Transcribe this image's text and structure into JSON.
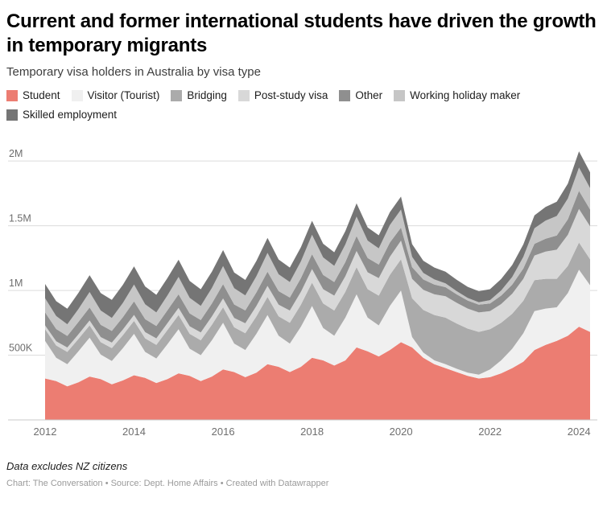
{
  "header": {
    "title": "Current and former international students have driven the growth in temporary migrants",
    "subtitle": "Temporary visa holders in Australia by visa type"
  },
  "legend": {
    "position": "top",
    "items": [
      {
        "label": "Student",
        "color": "#ec7d72"
      },
      {
        "label": "Visitor (Tourist)",
        "color": "#f0f0f0"
      },
      {
        "label": "Bridging",
        "color": "#ababab"
      },
      {
        "label": "Post-study visa",
        "color": "#d8d8d8"
      },
      {
        "label": "Other",
        "color": "#8f8f8f"
      },
      {
        "label": "Working holiday maker",
        "color": "#c6c6c6"
      },
      {
        "label": "Skilled employment",
        "color": "#757575"
      }
    ]
  },
  "chart_data": {
    "type": "area",
    "stacked": true,
    "unit": "thousands",
    "x_start": 2012,
    "x_step": 0.25,
    "y_max": 2150,
    "grid": true,
    "legend_position": "top",
    "xlabel": "",
    "ylabel": "",
    "y_ticks": [
      {
        "value": 500,
        "label": "500K"
      },
      {
        "value": 1000,
        "label": "1M"
      },
      {
        "value": 1500,
        "label": "1.5M"
      },
      {
        "value": 2000,
        "label": "2M"
      }
    ],
    "x_ticks": [
      {
        "value": 2012,
        "label": "2012"
      },
      {
        "value": 2014,
        "label": "2014"
      },
      {
        "value": 2016,
        "label": "2016"
      },
      {
        "value": 2018,
        "label": "2018"
      },
      {
        "value": 2020,
        "label": "2020"
      },
      {
        "value": 2022,
        "label": "2022"
      },
      {
        "value": 2024,
        "label": "2024"
      }
    ],
    "series": [
      {
        "id": "student",
        "name": "Student",
        "color": "#ec7d72",
        "values": [
          320,
          300,
          260,
          290,
          335,
          315,
          275,
          305,
          345,
          325,
          285,
          315,
          360,
          340,
          300,
          335,
          390,
          370,
          330,
          365,
          430,
          410,
          370,
          410,
          480,
          460,
          420,
          460,
          560,
          530,
          490,
          540,
          600,
          560,
          480,
          430,
          400,
          370,
          340,
          320,
          330,
          360,
          400,
          450,
          540,
          580,
          610,
          650,
          720,
          680
        ]
      },
      {
        "id": "visitor-tourist",
        "name": "Visitor (Tourist)",
        "color": "#f0f0f0",
        "values": [
          290,
          180,
          170,
          240,
          300,
          190,
          180,
          250,
          320,
          200,
          190,
          270,
          340,
          210,
          200,
          280,
          360,
          220,
          210,
          300,
          380,
          240,
          220,
          310,
          400,
          250,
          230,
          330,
          410,
          260,
          240,
          340,
          400,
          80,
          40,
          30,
          30,
          25,
          25,
          30,
          60,
          100,
          150,
          220,
          300,
          280,
          260,
          330,
          440,
          360
        ]
      },
      {
        "id": "bridging",
        "name": "Bridging",
        "color": "#ababab",
        "values": [
          90,
          95,
          95,
          95,
          95,
          95,
          100,
          100,
          100,
          105,
          105,
          110,
          110,
          115,
          115,
          120,
          120,
          125,
          130,
          135,
          140,
          150,
          160,
          170,
          180,
          190,
          195,
          200,
          210,
          220,
          230,
          240,
          240,
          300,
          330,
          350,
          360,
          350,
          340,
          330,
          310,
          290,
          270,
          250,
          240,
          230,
          220,
          210,
          210,
          200
        ]
      },
      {
        "id": "post-study-visa",
        "name": "Post-study visa",
        "color": "#d8d8d8",
        "values": [
          30,
          32,
          34,
          36,
          38,
          40,
          42,
          44,
          46,
          48,
          50,
          52,
          55,
          58,
          61,
          64,
          68,
          72,
          76,
          80,
          85,
          90,
          95,
          100,
          105,
          110,
          115,
          120,
          125,
          130,
          135,
          140,
          145,
          150,
          155,
          160,
          165,
          160,
          155,
          150,
          140,
          145,
          155,
          170,
          190,
          210,
          225,
          240,
          260,
          255
        ]
      },
      {
        "id": "other",
        "name": "Other",
        "color": "#8f8f8f",
        "values": [
          100,
          95,
          90,
          95,
          100,
          95,
          90,
          95,
          105,
          100,
          95,
          100,
          105,
          100,
          95,
          100,
          110,
          105,
          100,
          105,
          110,
          105,
          100,
          105,
          115,
          110,
          105,
          110,
          115,
          110,
          105,
          110,
          100,
          90,
          80,
          75,
          70,
          65,
          62,
          60,
          60,
          65,
          70,
          80,
          90,
          100,
          110,
          120,
          140,
          130
        ]
      },
      {
        "id": "working-holiday-maker",
        "name": "Working holiday maker",
        "color": "#c6c6c6",
        "values": [
          110,
          100,
          90,
          100,
          120,
          110,
          100,
          110,
          130,
          115,
          105,
          115,
          135,
          120,
          110,
          120,
          140,
          125,
          115,
          125,
          145,
          130,
          120,
          130,
          150,
          135,
          125,
          135,
          150,
          135,
          125,
          135,
          140,
          80,
          50,
          40,
          30,
          25,
          20,
          19,
          25,
          40,
          60,
          90,
          120,
          140,
          150,
          160,
          180,
          165
        ]
      },
      {
        "id": "skilled-employment",
        "name": "Skilled employment",
        "color": "#757575",
        "values": [
          110,
          115,
          120,
          125,
          130,
          135,
          140,
          140,
          140,
          138,
          136,
          134,
          132,
          130,
          128,
          126,
          124,
          122,
          120,
          118,
          116,
          114,
          112,
          110,
          108,
          106,
          105,
          104,
          103,
          102,
          101,
          100,
          100,
          98,
          95,
          92,
          90,
          88,
          86,
          85,
          85,
          88,
          92,
          96,
          100,
          105,
          110,
          115,
          125,
          122
        ]
      }
    ]
  },
  "footer": {
    "note": "Data excludes NZ citizens",
    "byline": "Chart: The Conversation • Source: Dept. Home Affairs • Created with Datawrapper"
  }
}
